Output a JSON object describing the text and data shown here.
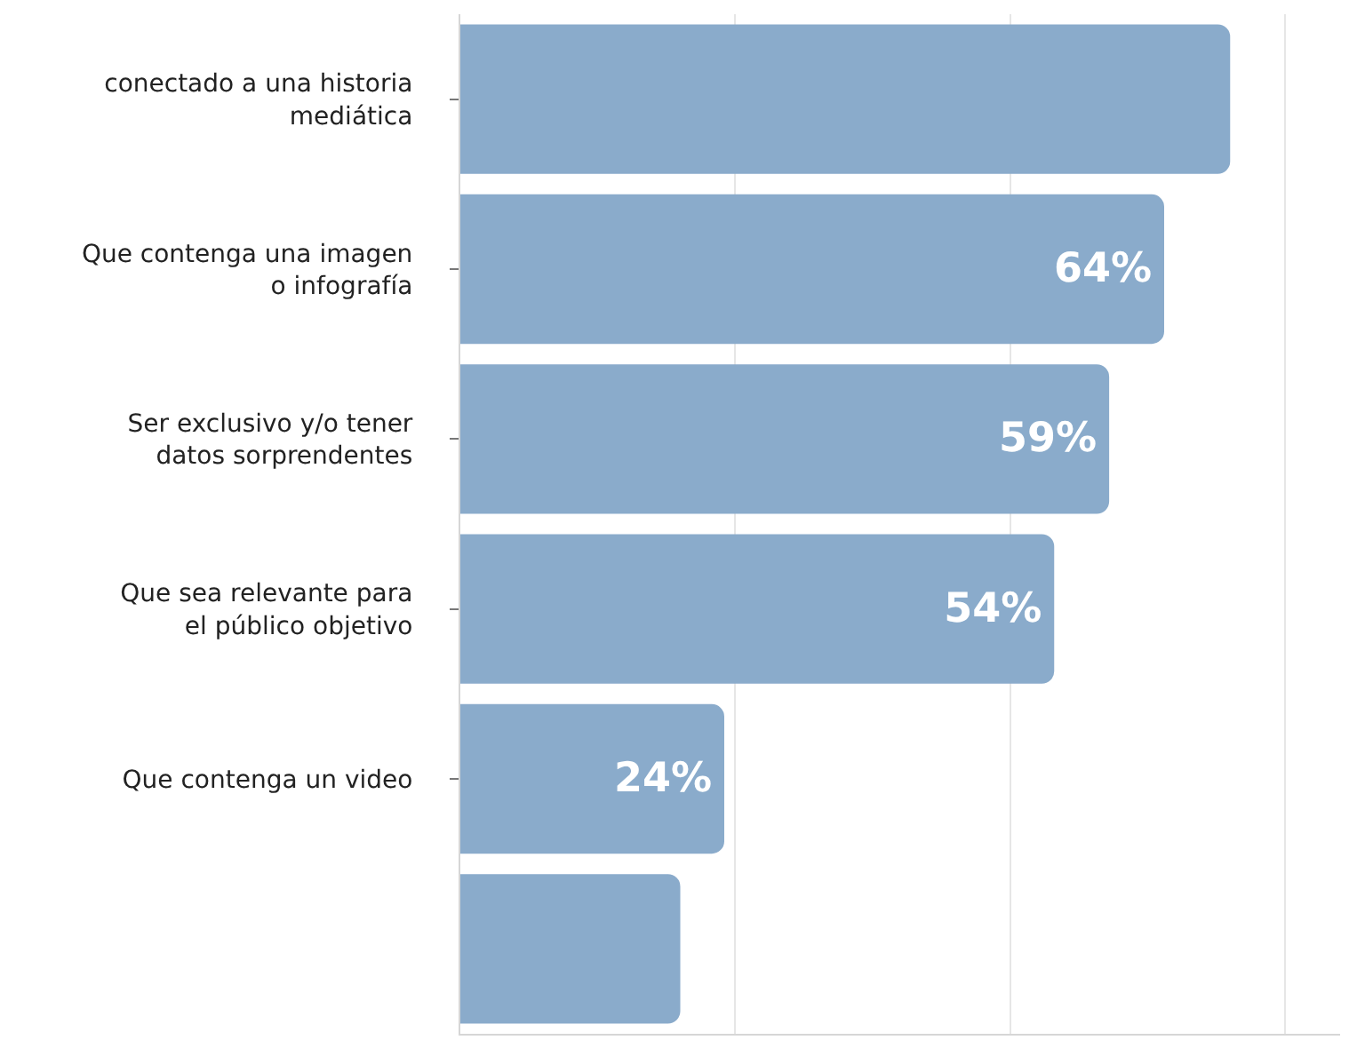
{
  "chart_data": {
    "type": "bar",
    "orientation": "horizontal",
    "categories": [
      "conectado a una historia mediática",
      "Que contenga una imagen o infografía",
      "Ser exclusivo y/o tener datos sorprendentes",
      "Que sea relevante para el público objetivo",
      "Que contenga un video",
      null
    ],
    "values": [
      70,
      64,
      59,
      54,
      24,
      20
    ],
    "value_labels": [
      null,
      "64%",
      "59%",
      "54%",
      "24%",
      null
    ],
    "color": "#8aabcb",
    "xlim": [
      0,
      80
    ],
    "xticks": [
      {
        "value": 25,
        "label": null
      },
      {
        "value": 50,
        "label": null
      },
      {
        "value": 75,
        "label": null
      }
    ],
    "grid": "x",
    "tick_labels": "y"
  }
}
